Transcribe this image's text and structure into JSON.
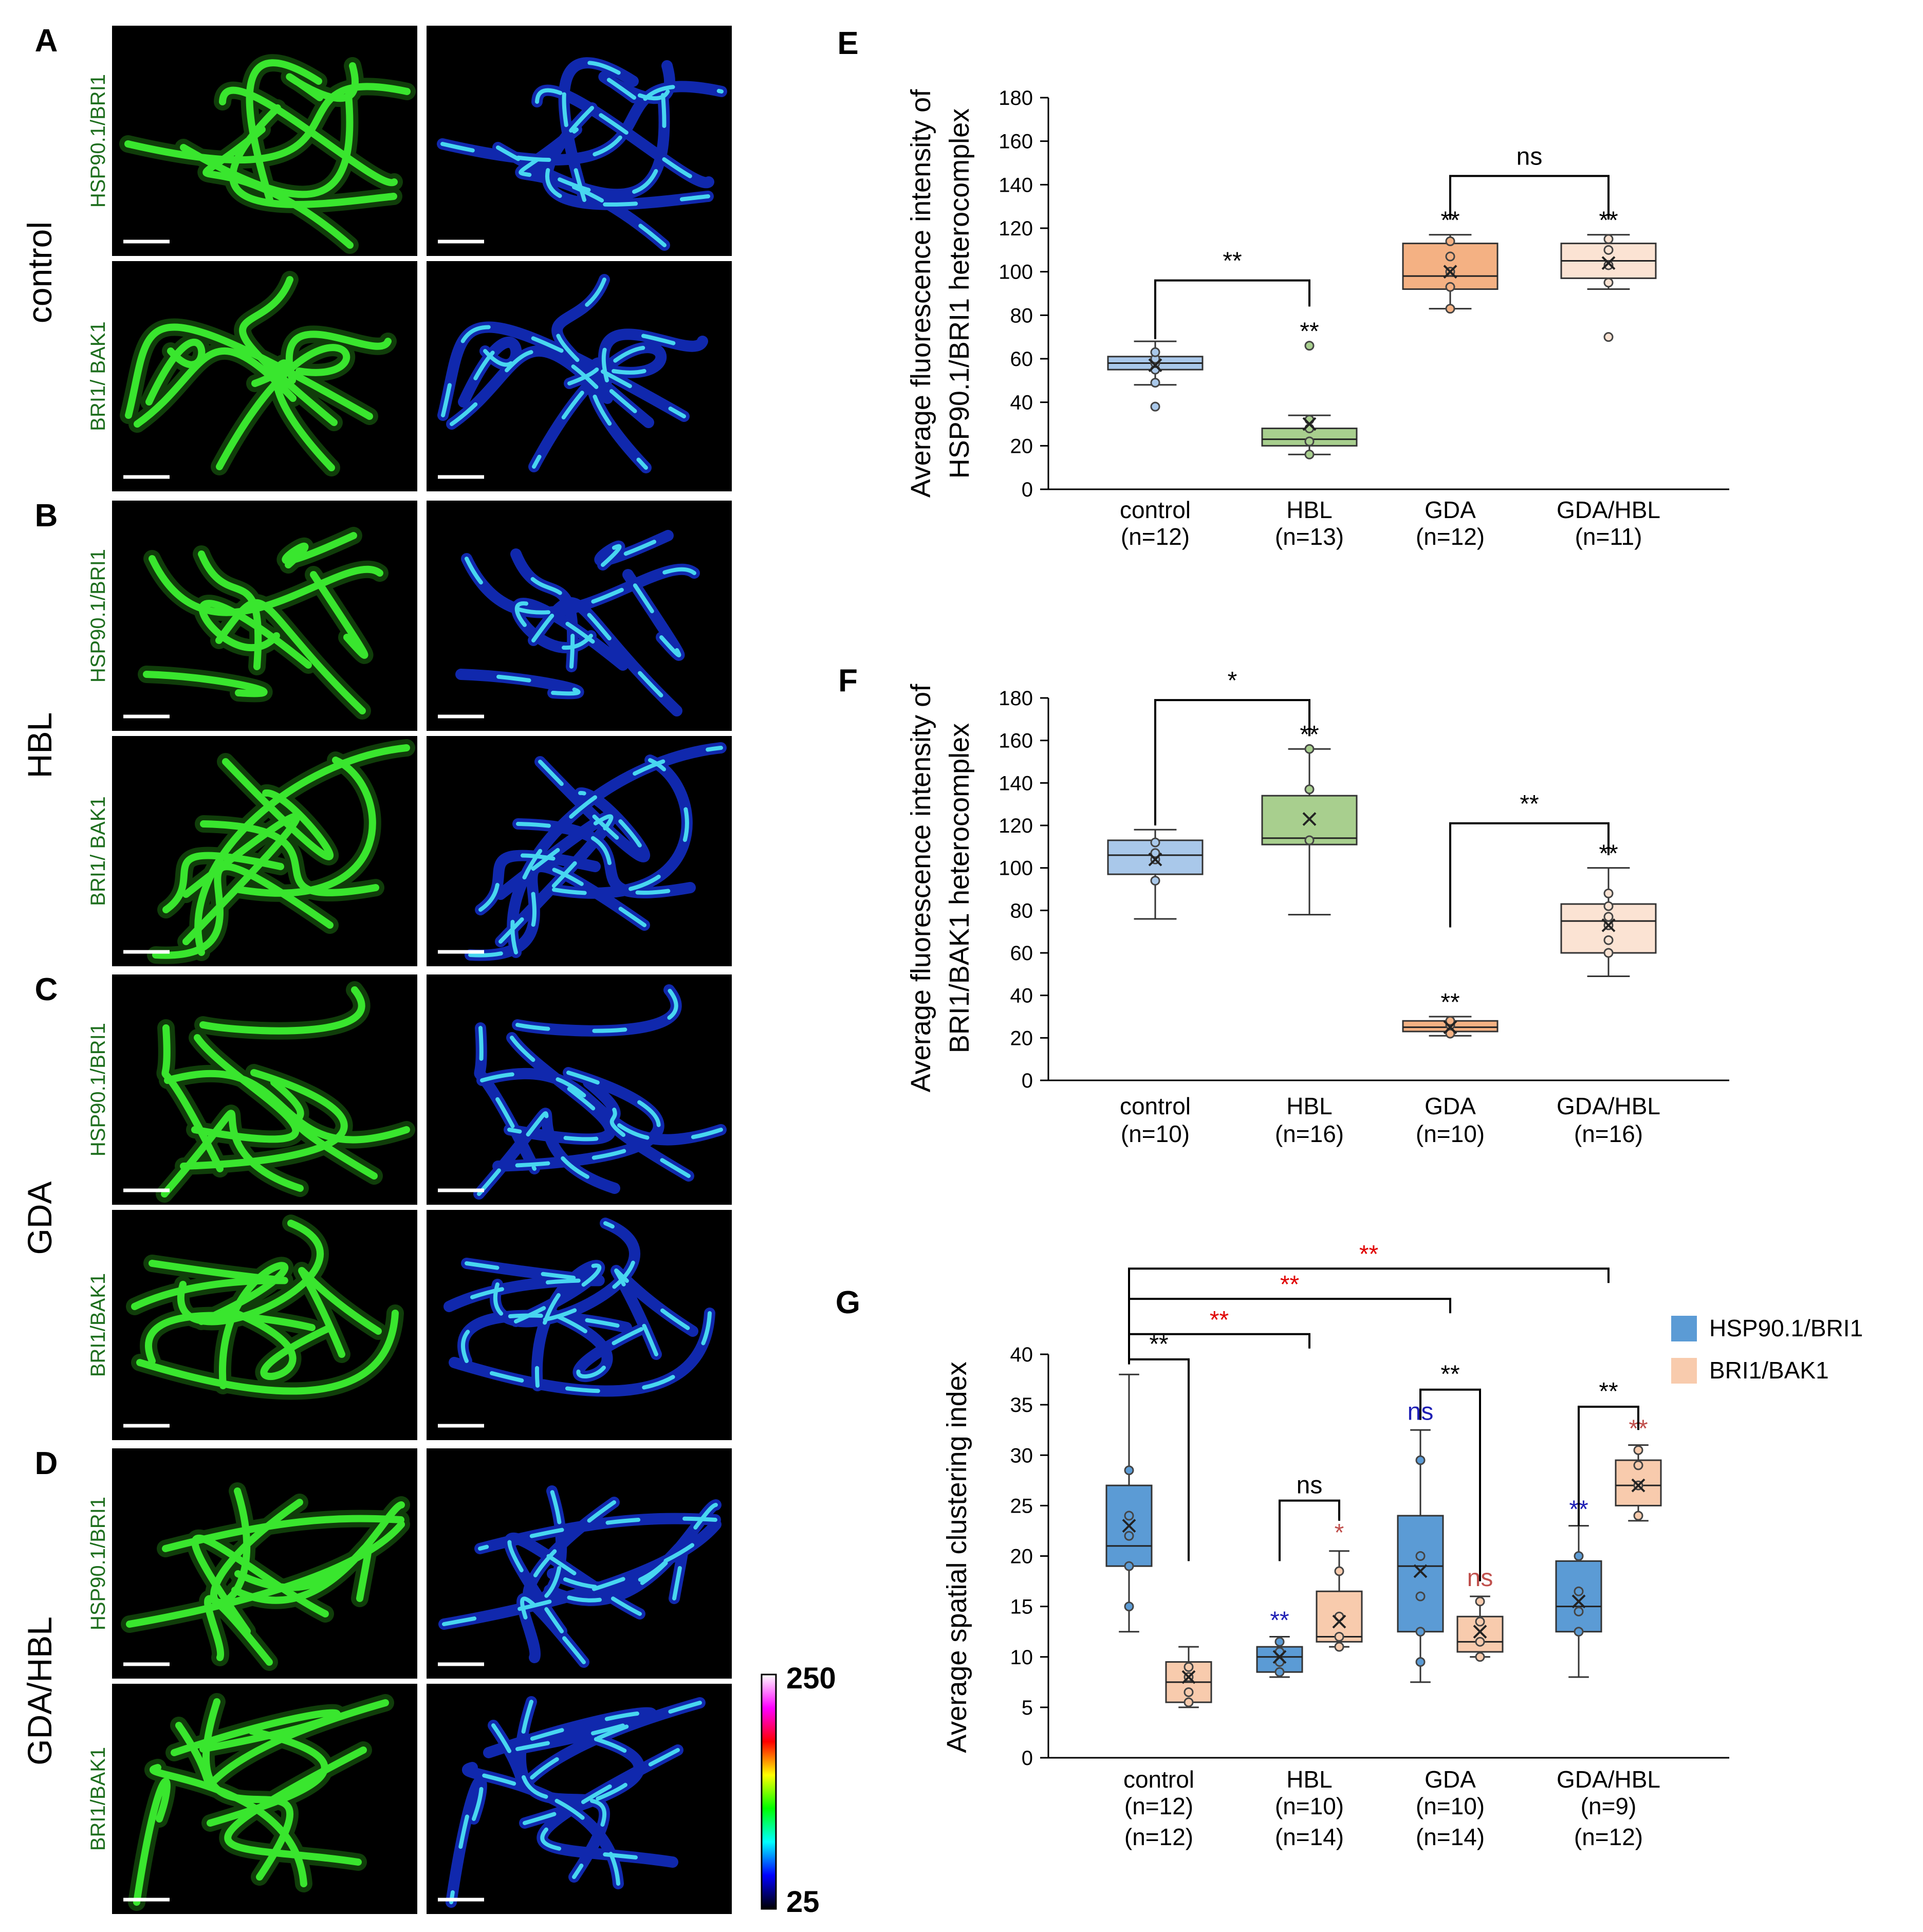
{
  "micrographs": {
    "panels": [
      {
        "letter": "A",
        "condition": "control",
        "rows": [
          {
            "label": "HSP90.1/BRI1"
          },
          {
            "label": "BRI1/ BAK1"
          }
        ]
      },
      {
        "letter": "B",
        "condition": "HBL",
        "rows": [
          {
            "label": "HSP90.1/BRI1"
          },
          {
            "label": "BRI1/ BAK1"
          }
        ]
      },
      {
        "letter": "C",
        "condition": "GDA",
        "rows": [
          {
            "label": "HSP90.1/BRI1"
          },
          {
            "label": "BRI1/BAK1"
          }
        ]
      },
      {
        "letter": "D",
        "condition": "GDA/HBL",
        "rows": [
          {
            "label": "HSP90.1/BRI1"
          },
          {
            "label": "BRI1/BAK1"
          }
        ]
      }
    ],
    "colorbar": {
      "max_label": "250",
      "min_label": "25",
      "stops": [
        "#ffffff",
        "#ff00ff",
        "#ff0000",
        "#ffff00",
        "#00ff00",
        "#00ffff",
        "#0000ff",
        "#000000"
      ]
    }
  },
  "chart_data": [
    {
      "letter": "E",
      "type": "box",
      "ylabel_lines": [
        "Average fluorescence intensity of",
        "HSP90.1/BRI1 heterocomplex"
      ],
      "ylim": [
        0,
        180
      ],
      "yticks": [
        0,
        20,
        40,
        60,
        80,
        100,
        120,
        140,
        160,
        180
      ],
      "categories": [
        "control",
        "HBL",
        "GDA",
        "GDA/HBL"
      ],
      "n_labels": [
        [
          "(n=12)"
        ],
        [
          "(n=13)"
        ],
        [
          "(n=12)"
        ],
        [
          "(n=11)"
        ]
      ],
      "boxes": [
        {
          "category": "control",
          "color": "#a9c8ea",
          "whisker_low": 48,
          "q1": 55,
          "median": 58,
          "q3": 61,
          "whisker_high": 68,
          "mean": 57,
          "points": [
            38,
            49,
            55,
            58,
            60,
            63
          ]
        },
        {
          "category": "HBL",
          "color": "#a8cf8e",
          "whisker_low": 16,
          "q1": 20,
          "median": 23,
          "q3": 28,
          "whisker_high": 34,
          "mean": 30,
          "points": [
            16,
            22,
            28,
            32,
            66
          ]
        },
        {
          "category": "GDA",
          "color": "#f4b183",
          "whisker_low": 83,
          "q1": 92,
          "median": 98,
          "q3": 113,
          "whisker_high": 117,
          "mean": 100,
          "points": [
            83,
            93,
            100,
            107,
            114
          ]
        },
        {
          "category": "GDA/HBL",
          "color": "#fbe3d3",
          "whisker_low": 92,
          "q1": 97,
          "median": 105,
          "q3": 113,
          "whisker_high": 117,
          "mean": 104,
          "points": [
            70,
            95,
            103,
            110,
            115
          ]
        }
      ],
      "annotations": [
        {
          "text": "**",
          "category": "HBL",
          "y": 66
        },
        {
          "text": "**",
          "category": "GDA",
          "y": 117
        },
        {
          "text": "**",
          "category": "GDA/HBL",
          "y": 117
        }
      ],
      "brackets": [
        {
          "from": "control",
          "to": "HBL",
          "y": 96,
          "drop_from": 69,
          "drop_to": 84,
          "text": "**"
        },
        {
          "from": "GDA",
          "to": "GDA/HBL",
          "y": 144,
          "drop_from": 124,
          "drop_to": 124,
          "text": "ns"
        }
      ]
    },
    {
      "letter": "F",
      "type": "box",
      "ylabel_lines": [
        "Average fluorescence intensity of",
        "BRI1/BAK1 heterocomplex"
      ],
      "ylim": [
        0,
        180
      ],
      "yticks": [
        0,
        20,
        40,
        60,
        80,
        100,
        120,
        140,
        160,
        180
      ],
      "categories": [
        "control",
        "HBL",
        "GDA",
        "GDA/HBL"
      ],
      "n_labels": [
        [
          "(n=10)"
        ],
        [
          "(n=16)"
        ],
        [
          "(n=10)"
        ],
        [
          "(n=16)"
        ]
      ],
      "boxes": [
        {
          "category": "control",
          "color": "#a9c8ea",
          "whisker_low": 76,
          "q1": 97,
          "median": 106,
          "q3": 113,
          "whisker_high": 118,
          "mean": 104,
          "points": [
            94,
            104,
            107,
            112
          ]
        },
        {
          "category": "HBL",
          "color": "#a8cf8e",
          "whisker_low": 78,
          "q1": 111,
          "median": 114,
          "q3": 134,
          "whisker_high": 156,
          "mean": 123,
          "points": [
            113,
            137,
            156
          ]
        },
        {
          "category": "GDA",
          "color": "#f4b183",
          "whisker_low": 21,
          "q1": 23,
          "median": 25,
          "q3": 28,
          "whisker_high": 30,
          "mean": 25,
          "points": [
            22,
            26,
            28
          ]
        },
        {
          "category": "GDA/HBL",
          "color": "#fbe3d3",
          "whisker_low": 49,
          "q1": 60,
          "median": 75,
          "q3": 83,
          "whisker_high": 100,
          "mean": 73,
          "points": [
            60,
            66,
            73,
            77,
            82,
            88
          ]
        }
      ],
      "annotations": [
        {
          "text": "**",
          "category": "HBL",
          "y": 156
        },
        {
          "text": "**",
          "category": "GDA",
          "y": 30
        },
        {
          "text": "**",
          "category": "GDA/HBL",
          "y": 100
        }
      ],
      "brackets": [
        {
          "from": "control",
          "to": "HBL",
          "y": 179,
          "drop_from": 120,
          "drop_to": 162,
          "text": "*"
        },
        {
          "from": "GDA",
          "to": "GDA/HBL",
          "y": 121,
          "drop_from": 72,
          "drop_to": 106,
          "text": "**"
        }
      ]
    },
    {
      "letter": "G",
      "type": "box",
      "ylabel_lines": [
        "Average  spatial clustering index"
      ],
      "ylim": [
        0,
        40
      ],
      "yticks": [
        0,
        5,
        10,
        15,
        20,
        25,
        30,
        35,
        40
      ],
      "categories": [
        "control",
        "HBL",
        "GDA",
        "GDA/HBL"
      ],
      "n_labels": [
        [
          "(n=12)",
          "(n=12)"
        ],
        [
          "(n=10)",
          "(n=14)"
        ],
        [
          "(n=10)",
          "(n=14)"
        ],
        [
          "(n=9)",
          "(n=12)"
        ]
      ],
      "legend": [
        {
          "name": "HSP90.1/BRI1",
          "color": "#5b9bd5"
        },
        {
          "name": "BRI1/BAK1",
          "color": "#f8cbad"
        }
      ],
      "series": [
        {
          "name": "HSP90.1/BRI1",
          "color": "#5b9bd5",
          "boxes": [
            {
              "category": "control",
              "whisker_low": 12.5,
              "q1": 19,
              "median": 21,
              "q3": 27,
              "whisker_high": 38,
              "mean": 23,
              "points": [
                15,
                19,
                22,
                24,
                28.5
              ]
            },
            {
              "category": "HBL",
              "whisker_low": 8,
              "q1": 8.5,
              "median": 10,
              "q3": 11,
              "whisker_high": 12,
              "mean": 10,
              "points": [
                8.5,
                9.5,
                10.5,
                11.5
              ]
            },
            {
              "category": "GDA",
              "whisker_low": 7.5,
              "q1": 12.5,
              "median": 19,
              "q3": 24,
              "whisker_high": 32.5,
              "mean": 18.5,
              "points": [
                9.5,
                12.5,
                16,
                20,
                29.5
              ]
            },
            {
              "category": "GDA/HBL",
              "whisker_low": 8,
              "q1": 12.5,
              "median": 15,
              "q3": 19.5,
              "whisker_high": 23,
              "mean": 15.5,
              "points": [
                12.5,
                14.5,
                16.5,
                20
              ]
            }
          ]
        },
        {
          "name": "BRI1/BAK1",
          "color": "#f8cbad",
          "boxes": [
            {
              "category": "control",
              "whisker_low": 5,
              "q1": 5.5,
              "median": 7.5,
              "q3": 9.5,
              "whisker_high": 11,
              "mean": 8,
              "points": [
                5.5,
                6.5,
                8,
                9
              ]
            },
            {
              "category": "HBL",
              "whisker_low": 11,
              "q1": 11.5,
              "median": 12,
              "q3": 16.5,
              "whisker_high": 20.5,
              "mean": 13.5,
              "points": [
                11,
                12,
                14,
                18.5
              ]
            },
            {
              "category": "GDA",
              "whisker_low": 10,
              "q1": 10.5,
              "median": 11.5,
              "q3": 14,
              "whisker_high": 16,
              "mean": 12.5,
              "points": [
                10,
                11.5,
                13.5,
                15.5
              ]
            },
            {
              "category": "GDA/HBL",
              "whisker_low": 23.5,
              "q1": 25,
              "median": 27,
              "q3": 29.5,
              "whisker_high": 31,
              "mean": 27,
              "points": [
                24,
                27,
                29,
                30.5
              ]
            }
          ]
        }
      ],
      "annotations": [
        {
          "text": "**",
          "category": "HBL",
          "series": "HSP90.1/BRI1",
          "y": 12.3,
          "color": "#1f1fb4"
        },
        {
          "text": "*",
          "category": "HBL",
          "series": "BRI1/BAK1",
          "y": 21,
          "color": "#c0504d"
        },
        {
          "text": "ns",
          "category": "GDA",
          "series": "HSP90.1/BRI1",
          "y": 33,
          "color": "#1f1fb4"
        },
        {
          "text": "ns",
          "category": "GDA",
          "series": "BRI1/BAK1",
          "y": 16.5,
          "color": "#c0504d"
        },
        {
          "text": "**",
          "category": "GDA/HBL",
          "series": "HSP90.1/BRI1",
          "y": 23.3,
          "color": "#1f1fb4"
        },
        {
          "text": "**",
          "category": "GDA/HBL",
          "series": "BRI1/BAK1",
          "y": 31.3,
          "color": "#c0504d"
        }
      ],
      "pair_brackets": [
        {
          "category": "control",
          "y": 39.5,
          "low_left": 39,
          "low_right": 19.5,
          "text": "**"
        },
        {
          "category": "HBL",
          "y": 25.5,
          "low_left": 19.5,
          "low_right": 23.5,
          "text": "ns"
        },
        {
          "category": "GDA",
          "y": 36.5,
          "low_left": 33.5,
          "low_right": 17.5,
          "text": "**"
        },
        {
          "category": "GDA/HBL",
          "y": 34.8,
          "low_left": 23,
          "low_right": 32.5,
          "text": "**"
        }
      ],
      "cross_brackets": [
        {
          "from": "control",
          "to": "HBL",
          "y": 42,
          "text": "**",
          "color": "#e00000"
        },
        {
          "from": "control",
          "to": "GDA",
          "y": 45.5,
          "text": "**",
          "color": "#e00000"
        },
        {
          "from": "control",
          "to": "GDA/HBL",
          "y": 48.5,
          "text": "**",
          "color": "#e00000"
        }
      ]
    }
  ]
}
